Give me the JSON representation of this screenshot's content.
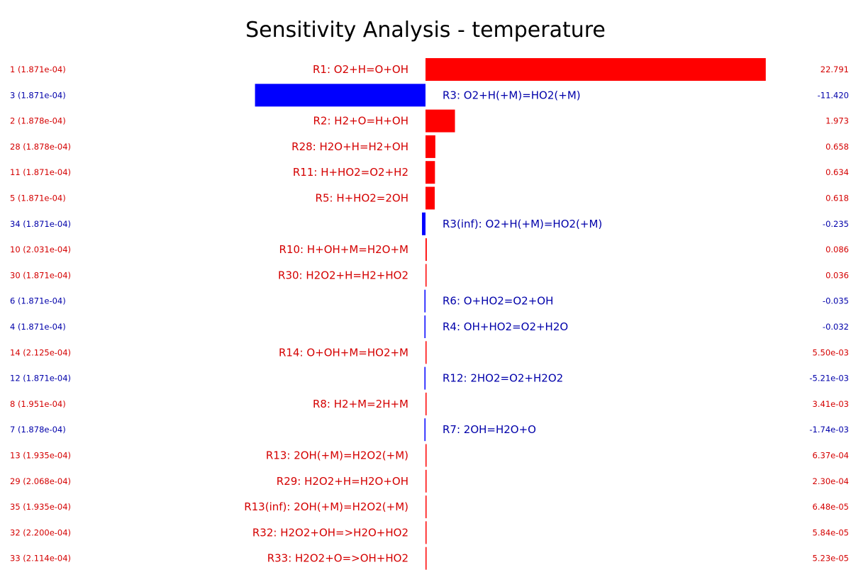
{
  "chart_data": {
    "type": "bar",
    "orientation": "horizontal",
    "title": "Sensitivity Analysis - temperature",
    "colors": {
      "positive": "#ff0000",
      "negative": "#0000ff",
      "positive_text": "#d40000",
      "negative_text": "#0000aa"
    },
    "rows": [
      {
        "rank_label": "1 (1.871e-04)",
        "reaction": "R1: O2+H=O+OH",
        "value": 22.791,
        "value_label": "22.791"
      },
      {
        "rank_label": "3 (1.871e-04)",
        "reaction": "R3: O2+H(+M)=HO2(+M)",
        "value": -11.42,
        "value_label": "-11.420"
      },
      {
        "rank_label": "2 (1.878e-04)",
        "reaction": "R2: H2+O=H+OH",
        "value": 1.973,
        "value_label": "1.973"
      },
      {
        "rank_label": "28 (1.878e-04)",
        "reaction": "R28: H2O+H=H2+OH",
        "value": 0.658,
        "value_label": "0.658"
      },
      {
        "rank_label": "11 (1.871e-04)",
        "reaction": "R11: H+HO2=O2+H2",
        "value": 0.634,
        "value_label": "0.634"
      },
      {
        "rank_label": "5 (1.871e-04)",
        "reaction": "R5: H+HO2=2OH",
        "value": 0.618,
        "value_label": "0.618"
      },
      {
        "rank_label": "34 (1.871e-04)",
        "reaction": "R3(inf): O2+H(+M)=HO2(+M)",
        "value": -0.235,
        "value_label": "-0.235"
      },
      {
        "rank_label": "10 (2.031e-04)",
        "reaction": "R10: H+OH+M=H2O+M",
        "value": 0.086,
        "value_label": "0.086"
      },
      {
        "rank_label": "30 (1.871e-04)",
        "reaction": "R30: H2O2+H=H2+HO2",
        "value": 0.036,
        "value_label": "0.036"
      },
      {
        "rank_label": "6 (1.871e-04)",
        "reaction": "R6: O+HO2=O2+OH",
        "value": -0.035,
        "value_label": "-0.035"
      },
      {
        "rank_label": "4 (1.871e-04)",
        "reaction": "R4: OH+HO2=O2+H2O",
        "value": -0.032,
        "value_label": "-0.032"
      },
      {
        "rank_label": "14 (2.125e-04)",
        "reaction": "R14: O+OH+M=HO2+M",
        "value": 0.0055,
        "value_label": "5.50e-03"
      },
      {
        "rank_label": "12 (1.871e-04)",
        "reaction": "R12: 2HO2=O2+H2O2",
        "value": -0.00521,
        "value_label": "-5.21e-03"
      },
      {
        "rank_label": "8 (1.951e-04)",
        "reaction": "R8: H2+M=2H+M",
        "value": 0.00341,
        "value_label": "3.41e-03"
      },
      {
        "rank_label": "7 (1.878e-04)",
        "reaction": "R7: 2OH=H2O+O",
        "value": -0.00174,
        "value_label": "-1.74e-03"
      },
      {
        "rank_label": "13 (1.935e-04)",
        "reaction": "R13: 2OH(+M)=H2O2(+M)",
        "value": 0.000637,
        "value_label": "6.37e-04"
      },
      {
        "rank_label": "29 (2.068e-04)",
        "reaction": "R29: H2O2+H=H2O+OH",
        "value": 0.00023,
        "value_label": "2.30e-04"
      },
      {
        "rank_label": "35 (1.935e-04)",
        "reaction": "R13(inf): 2OH(+M)=H2O2(+M)",
        "value": 6.48e-05,
        "value_label": "6.48e-05"
      },
      {
        "rank_label": "32 (2.200e-04)",
        "reaction": "R32: H2O2+OH=>H2O+HO2",
        "value": 5.84e-05,
        "value_label": "5.84e-05"
      },
      {
        "rank_label": "33 (2.114e-04)",
        "reaction": "R33: H2O2+O=>OH+HO2",
        "value": 5.23e-05,
        "value_label": "5.23e-05"
      }
    ]
  }
}
